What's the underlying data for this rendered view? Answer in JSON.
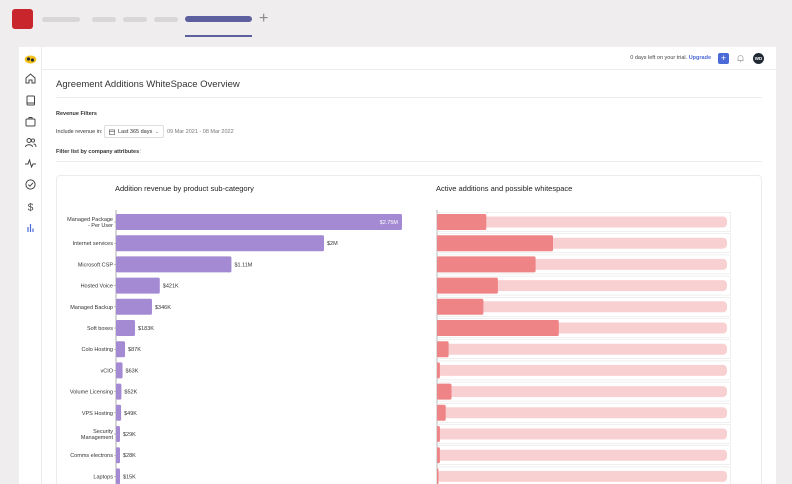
{
  "page": {
    "title": "Agreement Additions WhiteSpace Overview",
    "trial_text": "0 days left on your trial.",
    "upgrade_label": "Upgrade",
    "new_button": "+",
    "user_initials": "WD"
  },
  "filters": {
    "heading": "Revenue Filters",
    "include_label": "Include revenue in:",
    "period_value": "Last 365 days",
    "date_range": "09 Mar 2021 - 08 Mar 2022",
    "attributes_label": "Filter list by company attributes"
  },
  "sidebar": {
    "icons": [
      "home-icon",
      "book-icon",
      "briefcase-icon",
      "users-icon",
      "activity-icon",
      "check-circle-icon",
      "dollar-icon",
      "bar-chart-icon"
    ]
  },
  "chart_data": [
    {
      "type": "bar",
      "title": "Addition revenue by product sub-category",
      "categories": [
        "Managed Package\n- Per User",
        "Internet services",
        "Microsoft CSP",
        "Hosted Voice",
        "Managed Backup",
        "Soft boxes",
        "Colo Hosting",
        "vCIO",
        "Volume Licensing",
        "VPS Hosting",
        "Security\nManagement",
        "Comms electrons",
        "Laptops"
      ],
      "values": [
        2750000,
        2000000,
        1110000,
        421000,
        346000,
        183000,
        87000,
        63000,
        52000,
        49000,
        29000,
        28000,
        15000
      ],
      "labels": [
        "$2.75M",
        "$2M",
        "$1.11M",
        "$421K",
        "$346K",
        "$183K",
        "$87K",
        "$63K",
        "$52K",
        "$49K",
        "$29K",
        "$28K",
        "$15K"
      ],
      "max": 2750000,
      "color": "#a48ad3"
    },
    {
      "type": "bar",
      "title": "Active additions and possible whitespace",
      "categories": [
        "Managed Package\n- Per User",
        "Internet services",
        "Microsoft CSP",
        "Hosted Voice",
        "Managed Backup",
        "Soft boxes",
        "Colo Hosting",
        "vCIO",
        "Volume Licensing",
        "VPS Hosting",
        "Security\nManagement",
        "Comms electrons",
        "Laptops"
      ],
      "active_fraction": [
        0.17,
        0.4,
        0.34,
        0.21,
        0.16,
        0.42,
        0.04,
        0.01,
        0.05,
        0.03,
        0.01,
        0.01,
        0.0
      ],
      "active_color": "#ef8487",
      "whitespace_color": "#f9d0d1"
    }
  ]
}
